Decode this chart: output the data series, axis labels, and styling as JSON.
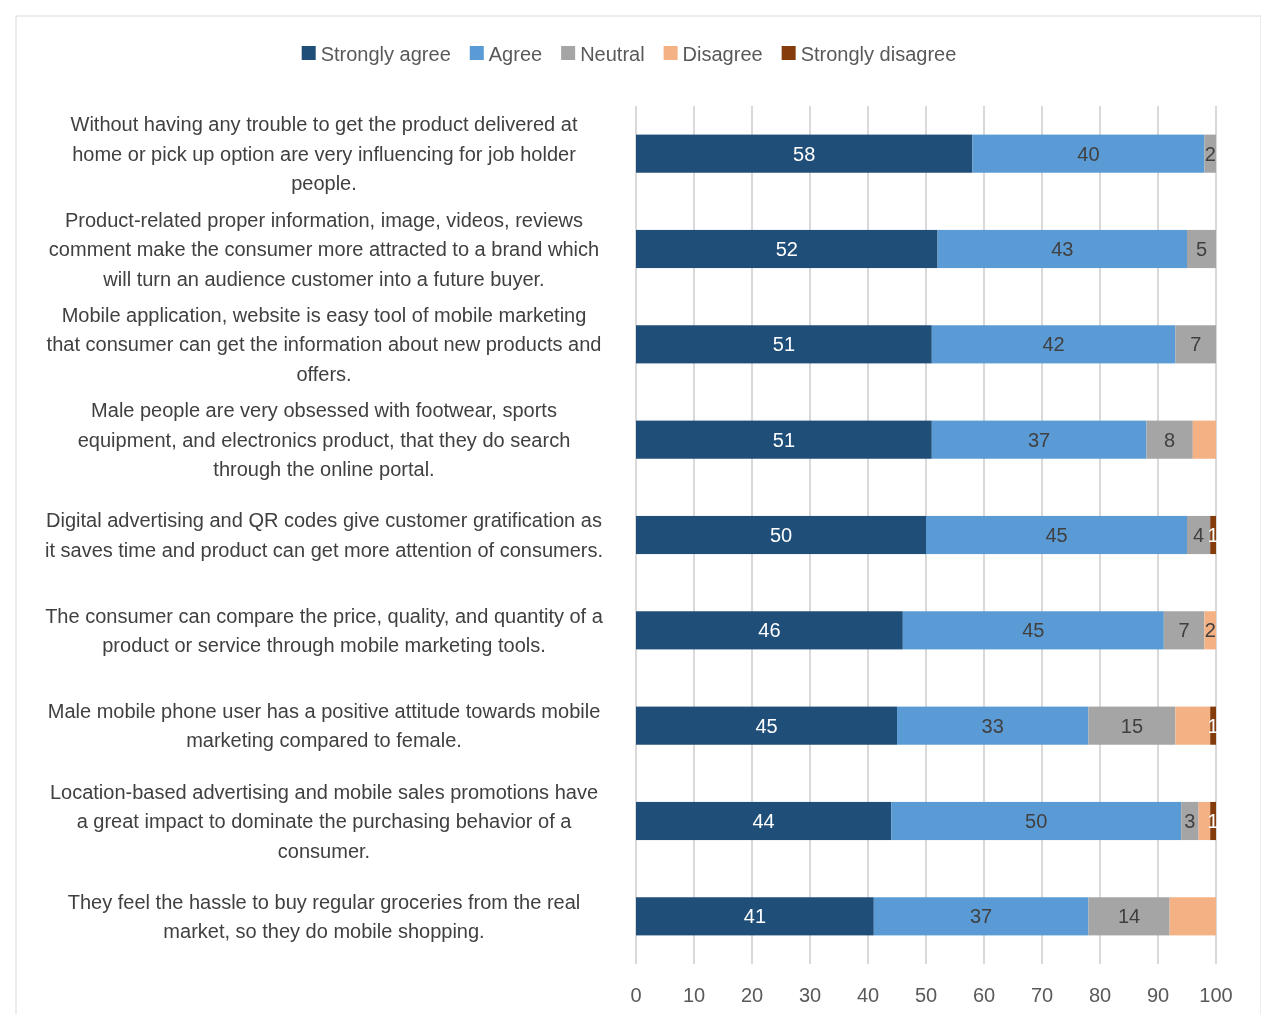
{
  "chart_data": {
    "type": "bar",
    "orientation": "horizontal",
    "stacked": true,
    "categories": [
      "Without having any trouble to get the product delivered at home or pick up option are very influencing for job holder people.",
      "Product-related proper information, image, videos, reviews comment make the consumer more attracted to a brand which will turn an audience customer into a future buyer.",
      "Mobile application, website is easy tool of mobile marketing that consumer can get the information about new products and offers.",
      "Male people are very obsessed with footwear, sports equipment, and electronics product, that they do search through the online portal.",
      "Digital advertising and QR codes give customer gratification as it saves time and product can get more attention of consumers.",
      "The consumer can compare the price, quality, and quantity of a product or service through mobile marketing tools.",
      "Male mobile phone user has a positive attitude towards mobile marketing compared to female.",
      "Location-based advertising and mobile sales promotions have a great impact to dominate the purchasing behavior of a consumer.",
      "They feel the hassle to buy regular groceries from the real market, so they do mobile shopping."
    ],
    "series": [
      {
        "name": "Strongly agree",
        "color": "#1f4e79",
        "values": [
          58,
          52,
          51,
          51,
          50,
          46,
          45,
          44,
          41
        ],
        "value_labels": [
          "58",
          "52",
          "51",
          "51",
          "50",
          "46",
          "45",
          "44",
          "41"
        ]
      },
      {
        "name": "Agree",
        "color": "#5b9bd5",
        "values": [
          40,
          43,
          42,
          37,
          45,
          45,
          33,
          50,
          37
        ],
        "value_labels": [
          "40",
          "43",
          "42",
          "37",
          "45",
          "45",
          "33",
          "50",
          "37"
        ]
      },
      {
        "name": "Neutral",
        "color": "#a5a5a5",
        "values": [
          2,
          5,
          7,
          8,
          4,
          7,
          15,
          3,
          14
        ],
        "value_labels": [
          "2",
          "5",
          "7",
          "8",
          "4",
          "7",
          "15",
          "3",
          "14"
        ]
      },
      {
        "name": "Disagree",
        "color": "#f4b183",
        "values": [
          null,
          null,
          null,
          4,
          null,
          2,
          6,
          2,
          8
        ],
        "value_labels": [
          null,
          null,
          null,
          null,
          null,
          "2",
          null,
          null,
          null
        ]
      },
      {
        "name": "Strongly disagree",
        "color": "#843c0c",
        "values": [
          null,
          null,
          null,
          null,
          1,
          null,
          1,
          1,
          null
        ],
        "value_labels": [
          null,
          null,
          null,
          null,
          "1",
          null,
          "1",
          "1",
          null
        ]
      }
    ],
    "xlim": [
      0,
      100
    ],
    "xticks": [
      0,
      10,
      20,
      30,
      40,
      50,
      60,
      70,
      80,
      90,
      100
    ],
    "grid": "x",
    "legend": "top"
  }
}
